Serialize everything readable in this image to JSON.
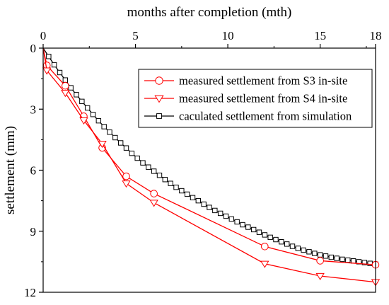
{
  "chart_data": {
    "type": "line",
    "xlabel": "months after completion (mth)",
    "ylabel": "settlement (mm)",
    "xlim": [
      0,
      18
    ],
    "ylim": [
      0,
      12
    ],
    "y_inverted": true,
    "x_axis_position": "top",
    "xticks": [
      0,
      5,
      10,
      15,
      18
    ],
    "yticks": [
      0,
      3,
      6,
      9,
      12
    ],
    "grid": false,
    "legend_position": "top-right",
    "series": [
      {
        "name": "measured settlement from S3 in-site",
        "color": "#ff0000",
        "marker": "circle",
        "x": [
          0,
          0.2,
          1.2,
          2.2,
          3.2,
          4.5,
          6.0,
          12.0,
          15.0,
          18.0
        ],
        "y": [
          0,
          0.85,
          1.85,
          3.35,
          4.9,
          6.3,
          7.15,
          9.75,
          10.45,
          10.65
        ]
      },
      {
        "name": "measured settlement from S4 in-site",
        "color": "#ff0000",
        "marker": "triangle-down",
        "x": [
          0,
          0.2,
          1.2,
          2.2,
          3.2,
          4.5,
          6.0,
          12.0,
          15.0,
          18.0
        ],
        "y": [
          0,
          1.1,
          2.2,
          3.55,
          4.7,
          6.65,
          7.6,
          10.6,
          11.2,
          11.5
        ]
      },
      {
        "name": "caculated settlement from simulation",
        "color": "#000000",
        "marker": "square",
        "x": [
          0,
          0.3,
          0.6,
          0.9,
          1.2,
          1.5,
          1.8,
          2.1,
          2.4,
          2.7,
          3.0,
          3.3,
          3.6,
          3.9,
          4.2,
          4.5,
          4.8,
          5.1,
          5.4,
          5.7,
          6.0,
          6.3,
          6.6,
          6.9,
          7.2,
          7.5,
          7.8,
          8.1,
          8.4,
          8.7,
          9.0,
          9.3,
          9.6,
          9.9,
          10.2,
          10.5,
          10.8,
          11.1,
          11.4,
          11.7,
          12.0,
          12.3,
          12.6,
          12.9,
          13.2,
          13.5,
          13.8,
          14.1,
          14.4,
          14.7,
          15.0,
          15.3,
          15.6,
          15.9,
          16.2,
          16.5,
          16.8,
          17.1,
          17.4,
          17.7,
          18.0
        ],
        "y": [
          0.0,
          0.41,
          0.82,
          1.2,
          1.57,
          1.95,
          2.29,
          2.62,
          2.94,
          3.26,
          3.57,
          3.86,
          4.13,
          4.4,
          4.66,
          4.91,
          5.17,
          5.41,
          5.64,
          5.85,
          6.05,
          6.25,
          6.46,
          6.65,
          6.84,
          7.01,
          7.18,
          7.35,
          7.5,
          7.67,
          7.83,
          7.98,
          8.12,
          8.26,
          8.4,
          8.54,
          8.68,
          8.8,
          8.92,
          9.05,
          9.18,
          9.3,
          9.41,
          9.52,
          9.63,
          9.74,
          9.84,
          9.93,
          10.01,
          10.09,
          10.16,
          10.22,
          10.28,
          10.33,
          10.38,
          10.42,
          10.46,
          10.5,
          10.54,
          10.58,
          10.62
        ]
      }
    ]
  }
}
